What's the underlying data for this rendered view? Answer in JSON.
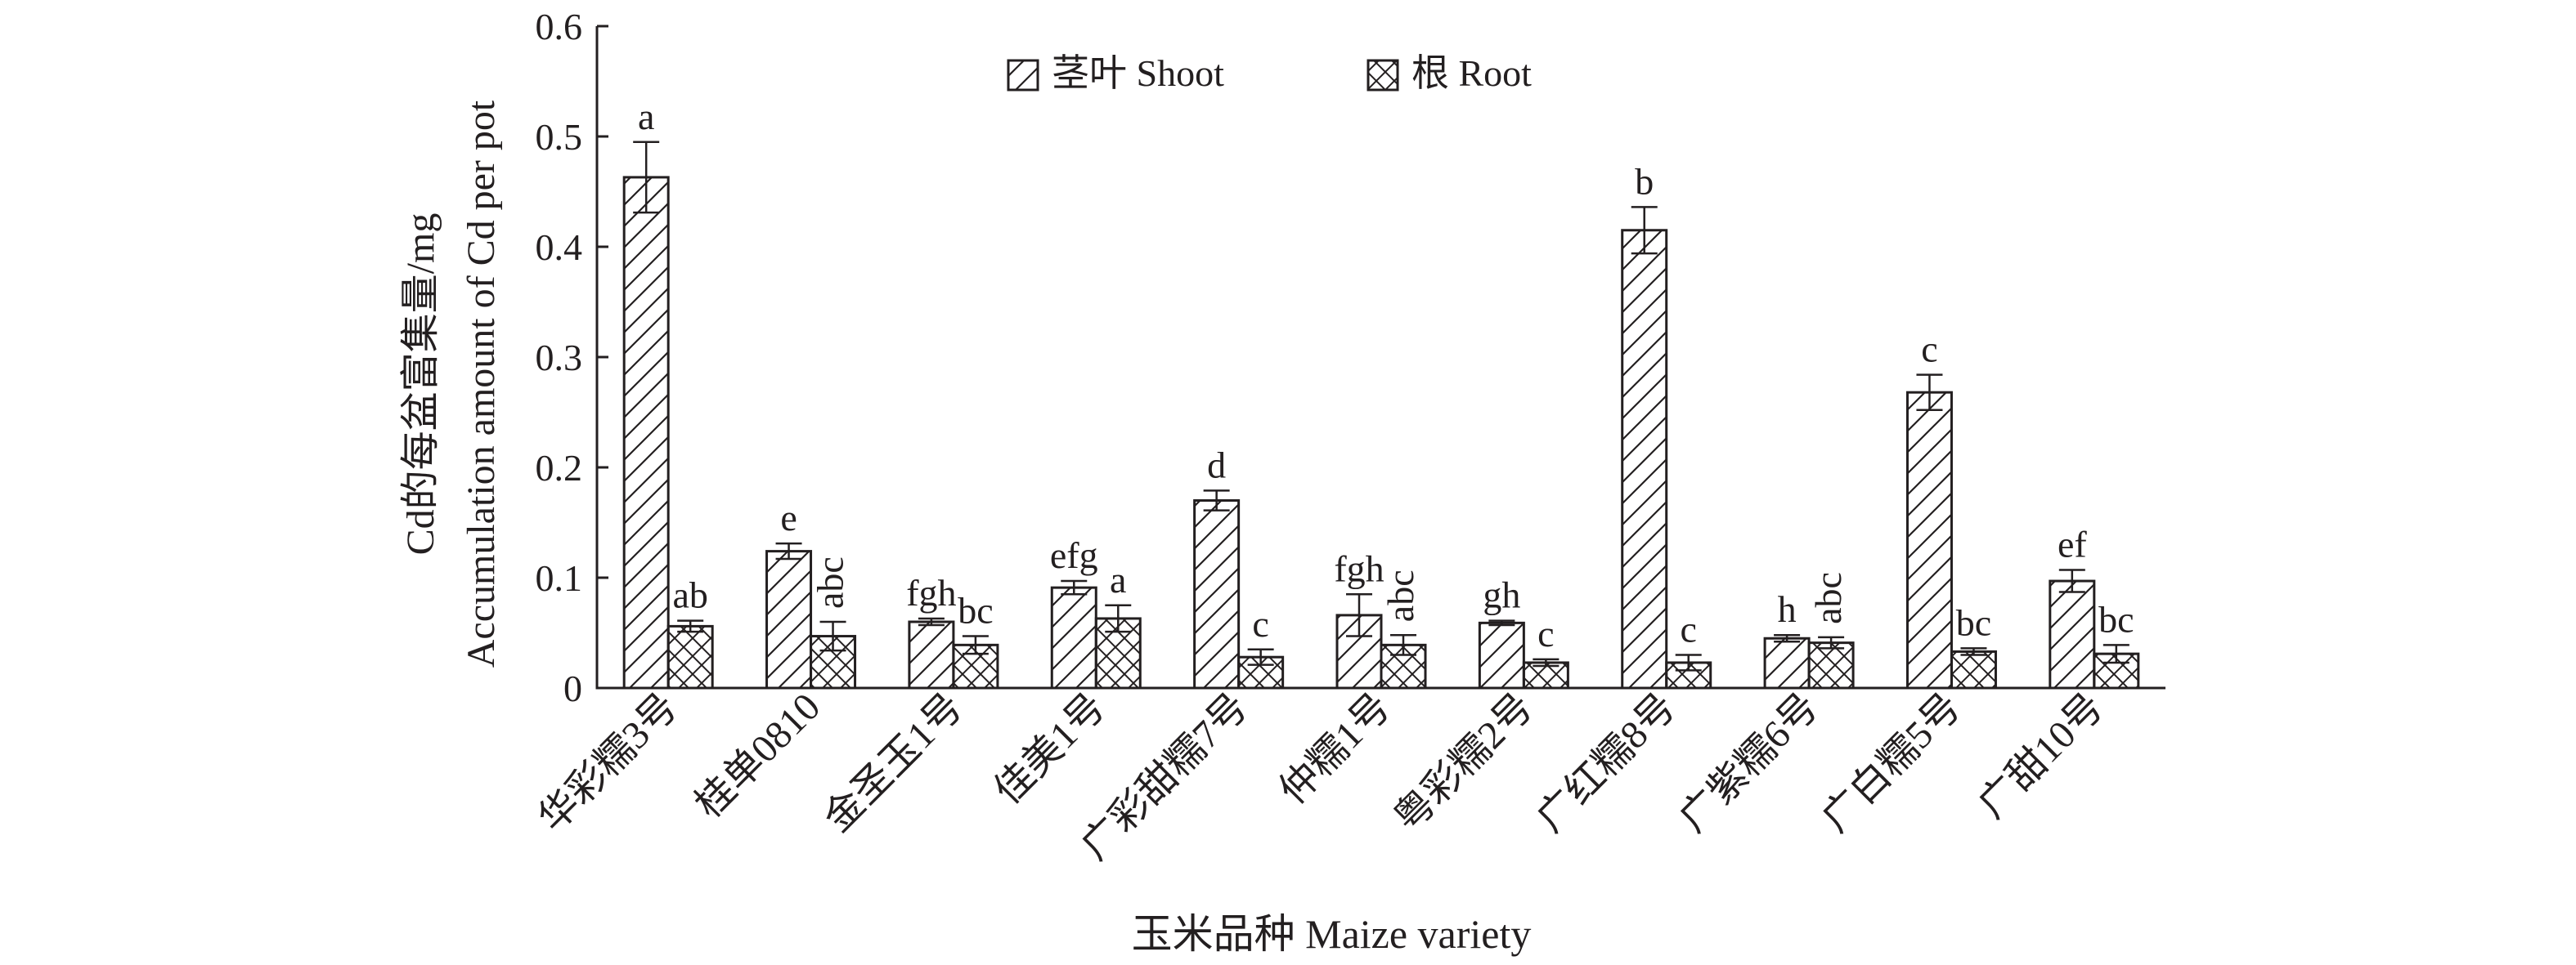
{
  "chart_data": {
    "type": "bar",
    "title": "",
    "ylabel_cn": "Cd的每盆富集量/mg",
    "ylabel_en": "Accumulation amount of Cd per pot",
    "xlabel": "玉米品种 Maize variety",
    "ylim": [
      0,
      0.6
    ],
    "yticks": [
      "0",
      "0.1",
      "0.2",
      "0.3",
      "0.4",
      "0.5",
      "0.6"
    ],
    "categories": [
      "华彩糯3号",
      "桂单0810",
      "金圣玉1号",
      "佳美1号",
      "广彩甜糯7号",
      "仲糯1号",
      "粤彩糯2号",
      "广红糯8号",
      "广紫糯6号",
      "广白糯5号",
      "广甜10号"
    ],
    "legend_position": "top-center",
    "grid": false,
    "series": [
      {
        "name": "茎叶 Shoot",
        "pattern": "diagonal-hatch",
        "values": [
          0.463,
          0.124,
          0.06,
          0.091,
          0.17,
          0.066,
          0.059,
          0.415,
          0.045,
          0.268,
          0.097
        ],
        "errors": [
          0.032,
          0.007,
          0.003,
          0.006,
          0.009,
          0.019,
          0.002,
          0.021,
          0.003,
          0.016,
          0.01
        ],
        "labels": [
          "a",
          "e",
          "fgh",
          "efg",
          "d",
          "fgh",
          "gh",
          "b",
          "h",
          "c",
          "ef"
        ]
      },
      {
        "name": "根 Root",
        "pattern": "cross-hatch",
        "values": [
          0.056,
          0.047,
          0.039,
          0.063,
          0.028,
          0.039,
          0.023,
          0.023,
          0.041,
          0.033,
          0.031
        ],
        "errors": [
          0.005,
          0.013,
          0.008,
          0.012,
          0.007,
          0.009,
          0.003,
          0.007,
          0.005,
          0.003,
          0.008
        ],
        "labels": [
          "ab",
          "abc",
          "bc",
          "a",
          "c",
          "abc",
          "c",
          "c",
          "abc",
          "bc",
          "bc"
        ]
      }
    ]
  },
  "colors": {
    "ink": "#231f20",
    "background": "#ffffff"
  }
}
